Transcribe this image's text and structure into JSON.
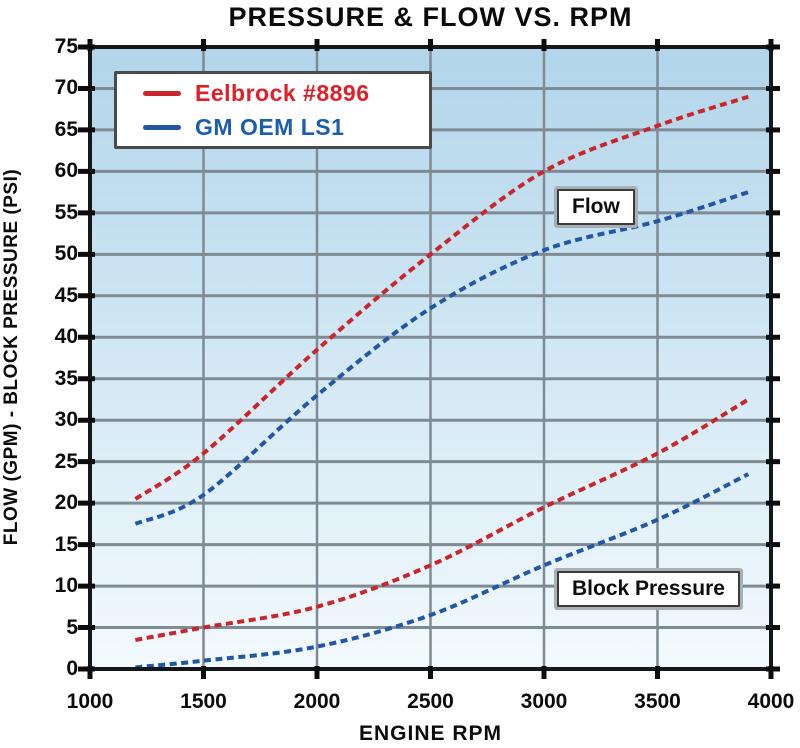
{
  "title": "PRESSURE & FLOW VS. RPM",
  "legend": {
    "items": [
      {
        "label": "Eelbrock #8896",
        "color": "#e01f26",
        "line_color": "#c9252b"
      },
      {
        "label": "GM OEM LS1",
        "color": "#1b5ead",
        "line_color": "#2257a5"
      }
    ]
  },
  "annotations": {
    "flow_label": "Flow",
    "block_pressure_label": "Block Pressure"
  },
  "axes": {
    "x_label": "ENGINE RPM",
    "y_label": "FLOW (GPM) - BLOCK PRESSURE (PSI)"
  },
  "style": {
    "grid_color": "#7e8b94",
    "spine_color": "#14181b",
    "tick_color": "#0c0c0c",
    "plot_bg_top": "#b2d5ea",
    "plot_bg_bottom": "#f3fafd"
  },
  "chart_data": {
    "type": "line",
    "title": "PRESSURE & FLOW VS. RPM",
    "xlabel": "ENGINE RPM",
    "ylabel": "FLOW (GPM) - BLOCK PRESSURE (PSI)",
    "xlim": [
      1000,
      4000
    ],
    "ylim": [
      0,
      75
    ],
    "x_ticks": [
      1000,
      1500,
      2000,
      2500,
      3000,
      3500,
      4000
    ],
    "y_ticks": [
      0,
      5,
      10,
      15,
      20,
      25,
      30,
      35,
      40,
      45,
      50,
      55,
      60,
      65,
      70,
      75
    ],
    "grid": true,
    "legend_position": "top-left",
    "line_style": "dashed",
    "x": [
      1200,
      1500,
      2000,
      2500,
      3000,
      3500,
      3900
    ],
    "series": [
      {
        "name": "Eelbrock #8896 Flow",
        "group": "Flow",
        "color": "#c9252b",
        "values": [
          20.5,
          26,
          38.5,
          50,
          60,
          65.5,
          69
        ]
      },
      {
        "name": "GM OEM LS1 Flow",
        "group": "Flow",
        "color": "#2257a5",
        "values": [
          17.5,
          21,
          33,
          43.5,
          50.5,
          54,
          57.5
        ]
      },
      {
        "name": "Eelbrock #8896 Block Pressure",
        "group": "Block Pressure",
        "color": "#c9252b",
        "values": [
          3.5,
          5,
          7.5,
          12.5,
          19.5,
          26,
          32.5
        ]
      },
      {
        "name": "GM OEM LS1 Block Pressure",
        "group": "Block Pressure",
        "color": "#2257a5",
        "values": [
          0.2,
          1,
          2.7,
          6.5,
          12.5,
          18,
          23.5
        ]
      }
    ]
  }
}
